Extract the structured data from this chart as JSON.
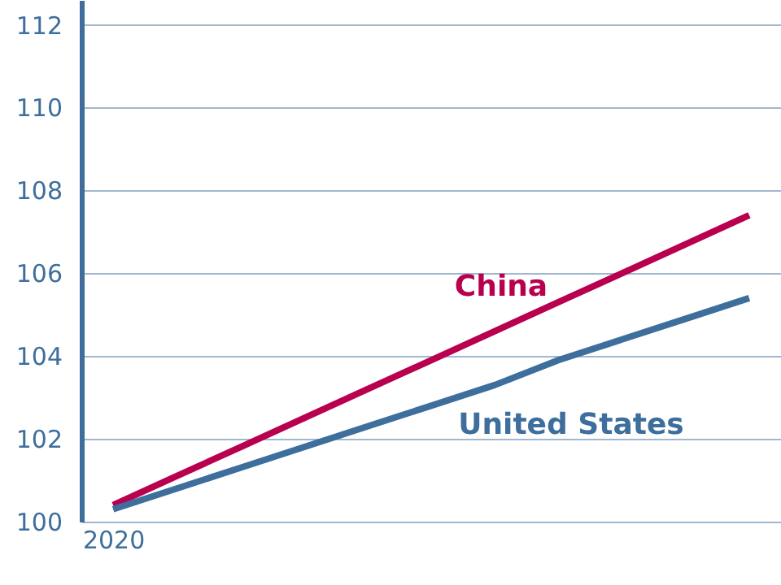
{
  "chart_data": {
    "type": "line",
    "categories": [
      "2020",
      null,
      null,
      null,
      null,
      null,
      null,
      null,
      null,
      null,
      null
    ],
    "series": [
      {
        "name": "China",
        "color": "#b8004f",
        "values": [
          100.4,
          101.1,
          101.8,
          102.5,
          103.2,
          103.9,
          104.6,
          105.3,
          106,
          106.7,
          107.4
        ]
      },
      {
        "name": "United States",
        "color": "#3d6e9c",
        "values": [
          100.3,
          100.8,
          101.3,
          101.8,
          102.3,
          102.8,
          103.3,
          103.9,
          104.4,
          104.9,
          105.4
        ]
      }
    ],
    "ylim": [
      100,
      112.6
    ],
    "yticks": [
      100,
      102,
      104,
      106,
      108,
      110,
      112
    ],
    "grid": "y",
    "legend": false,
    "marker": "none",
    "line_style": "solid"
  }
}
